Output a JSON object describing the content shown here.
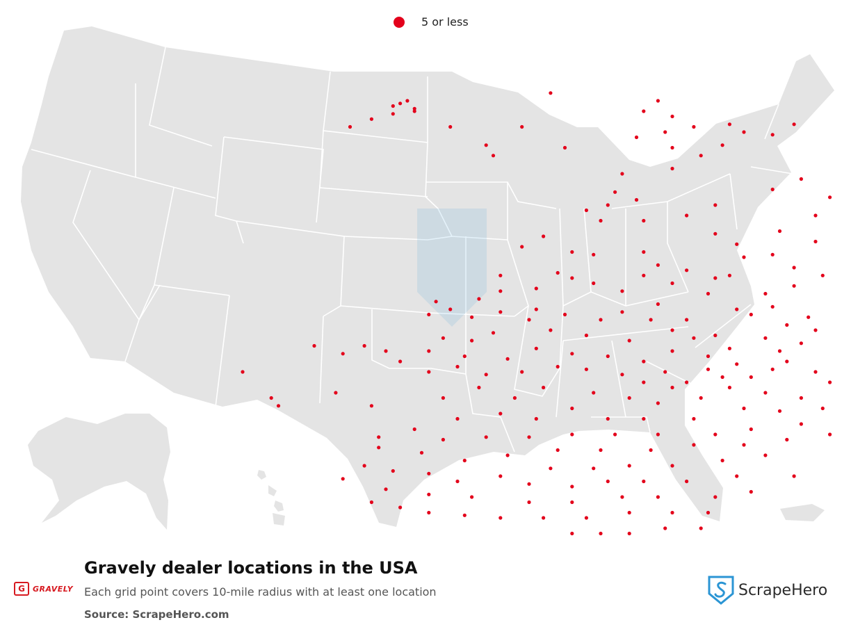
{
  "legend": {
    "label": "5 or less"
  },
  "title": "Gravely dealer locations in the USA",
  "subtitle": "Each grid point covers 10-mile radius with at least one location",
  "source": "Source: ScrapeHero.com",
  "logo_left": {
    "mark": "G",
    "name": "GRAVELY"
  },
  "logo_right": {
    "name": "ScrapeHero"
  },
  "colors": {
    "dot": "#e3001b",
    "land": "#e4e4e4",
    "border": "#ffffff",
    "brand_red": "#d71920",
    "scrapehero_blue": "#2b95d4"
  },
  "points": [
    [
      54,
      31
    ],
    [
      54,
      32
    ],
    [
      51,
      33
    ],
    [
      51,
      30
    ],
    [
      48,
      35
    ],
    [
      45,
      38
    ],
    [
      53,
      28
    ],
    [
      52,
      29
    ],
    [
      65,
      49
    ],
    [
      59,
      38
    ],
    [
      64,
      45
    ],
    [
      75,
      46
    ],
    [
      83,
      56
    ],
    [
      73,
      25
    ],
    [
      69,
      38
    ],
    [
      88,
      28
    ],
    [
      86,
      32
    ],
    [
      98,
      37
    ],
    [
      107,
      37
    ],
    [
      104,
      41
    ],
    [
      97,
      45
    ],
    [
      100,
      40
    ],
    [
      93,
      38
    ],
    [
      90,
      46
    ],
    [
      94,
      49
    ],
    [
      90,
      34
    ],
    [
      89,
      40
    ],
    [
      85,
      42
    ],
    [
      90,
      54
    ],
    [
      82,
      63
    ],
    [
      85,
      66
    ],
    [
      96,
      68
    ],
    [
      104,
      62
    ],
    [
      108,
      58
    ],
    [
      115,
      61
    ],
    [
      112,
      65
    ],
    [
      118,
      68
    ],
    [
      110,
      72
    ],
    [
      105,
      78
    ],
    [
      99,
      83
    ],
    [
      96,
      79
    ],
    [
      100,
      88
    ],
    [
      104,
      87
    ],
    [
      107,
      92
    ],
    [
      111,
      95
    ],
    [
      107,
      99
    ],
    [
      103,
      102
    ],
    [
      98,
      95
    ],
    [
      96,
      96
    ],
    [
      92,
      93
    ],
    [
      88,
      91
    ],
    [
      80,
      74
    ],
    [
      78,
      70
    ],
    [
      81,
      68
    ],
    [
      86,
      74
    ],
    [
      92,
      72
    ],
    [
      120,
      69
    ],
    [
      117,
      72
    ],
    [
      114,
      76
    ],
    [
      110,
      82
    ],
    [
      117,
      84
    ],
    [
      115,
      89
    ],
    [
      118,
      94
    ],
    [
      121,
      98
    ],
    [
      72,
      80
    ],
    [
      69,
      84
    ],
    [
      76,
      86
    ],
    [
      79,
      87
    ],
    [
      86,
      86
    ],
    [
      86,
      95
    ],
    [
      90,
      98
    ],
    [
      95,
      102
    ],
    [
      99,
      108
    ],
    [
      101,
      110
    ],
    [
      104,
      107
    ],
    [
      106,
      114
    ],
    [
      109,
      111
    ],
    [
      110,
      116
    ],
    [
      114,
      118
    ],
    [
      115,
      109
    ],
    [
      117,
      103
    ],
    [
      120,
      105
    ],
    [
      123,
      110
    ],
    [
      123,
      115
    ],
    [
      122,
      119
    ],
    [
      119,
      121
    ],
    [
      117,
      127
    ],
    [
      113,
      124
    ],
    [
      108,
      121
    ],
    [
      105,
      124
    ],
    [
      103,
      119
    ],
    [
      98,
      123
    ],
    [
      96,
      118
    ],
    [
      92,
      112
    ],
    [
      88,
      106
    ],
    [
      83,
      101
    ],
    [
      79,
      98
    ],
    [
      76,
      96
    ],
    [
      74,
      94
    ],
    [
      71,
      100
    ],
    [
      66,
      95
    ],
    [
      66,
      101
    ],
    [
      63,
      104
    ],
    [
      59,
      108
    ],
    [
      56,
      110
    ],
    [
      57,
      105
    ],
    [
      62,
      111
    ],
    [
      66,
      109
    ],
    [
      71,
      108
    ],
    [
      75,
      110
    ],
    [
      80,
      112
    ],
    [
      83,
      109
    ],
    [
      87,
      112
    ],
    [
      90,
      116
    ],
    [
      93,
      119
    ],
    [
      95,
      126
    ],
    [
      99,
      129
    ],
    [
      104,
      131
    ],
    [
      101,
      134
    ],
    [
      97,
      134
    ],
    [
      95,
      131
    ],
    [
      90,
      124
    ],
    [
      84,
      120
    ],
    [
      78,
      118
    ],
    [
      73,
      116
    ],
    [
      70,
      112
    ],
    [
      65,
      117
    ],
    [
      62,
      120
    ],
    [
      58,
      119
    ],
    [
      56,
      124
    ],
    [
      61,
      126
    ],
    [
      67,
      127
    ],
    [
      71,
      123
    ],
    [
      76,
      125
    ],
    [
      81,
      126
    ],
    [
      86,
      128
    ],
    [
      89,
      132
    ],
    [
      92,
      136
    ],
    [
      98,
      138
    ],
    [
      103,
      140
    ],
    [
      108,
      142
    ],
    [
      112,
      136
    ],
    [
      116,
      132
    ],
    [
      120,
      129
    ],
    [
      124,
      126
    ],
    [
      106,
      128
    ],
    [
      110,
      132
    ],
    [
      114,
      127
    ],
    [
      90,
      138
    ],
    [
      86,
      136
    ],
    [
      83,
      133
    ],
    [
      78,
      131
    ],
    [
      74,
      130
    ],
    [
      69,
      132
    ],
    [
      64,
      133
    ],
    [
      60,
      130
    ],
    [
      56,
      132
    ],
    [
      52,
      128
    ],
    [
      50,
      124
    ],
    [
      47,
      122
    ],
    [
      44,
      125
    ],
    [
      40,
      122
    ],
    [
      30,
      132
    ],
    [
      34,
      142
    ],
    [
      35,
      145
    ],
    [
      43,
      140
    ],
    [
      48,
      145
    ],
    [
      58,
      142
    ],
    [
      63,
      138
    ],
    [
      68,
      142
    ],
    [
      72,
      138
    ],
    [
      79,
      140
    ],
    [
      84,
      142
    ],
    [
      88,
      144
    ],
    [
      94,
      142
    ],
    [
      60,
      150
    ],
    [
      66,
      148
    ],
    [
      71,
      150
    ],
    [
      76,
      146
    ],
    [
      81,
      150
    ],
    [
      86,
      150
    ],
    [
      93,
      150
    ],
    [
      100,
      146
    ],
    [
      105,
      147
    ],
    [
      111,
      146
    ],
    [
      117,
      140
    ],
    [
      122,
      138
    ],
    [
      126,
      135
    ],
    [
      118,
      148
    ],
    [
      113,
      151
    ],
    [
      108,
      152
    ],
    [
      101,
      154
    ],
    [
      96,
      156
    ],
    [
      88,
      156
    ],
    [
      82,
      156
    ],
    [
      76,
      156
    ],
    [
      70,
      157
    ],
    [
      64,
      157
    ],
    [
      58,
      158
    ],
    [
      54,
      154
    ],
    [
      49,
      157
    ],
    [
      49,
      161
    ],
    [
      55,
      163
    ],
    [
      61,
      166
    ],
    [
      67,
      164
    ],
    [
      74,
      162
    ],
    [
      80,
      162
    ],
    [
      87,
      162
    ],
    [
      93,
      160
    ],
    [
      100,
      160
    ],
    [
      106,
      158
    ],
    [
      112,
      156
    ],
    [
      90,
      168
    ],
    [
      97,
      166
    ],
    [
      103,
      164
    ],
    [
      84,
      168
    ],
    [
      79,
      169
    ],
    [
      73,
      169
    ],
    [
      66,
      172
    ],
    [
      70,
      175
    ],
    [
      76,
      176
    ],
    [
      81,
      174
    ],
    [
      86,
      174
    ],
    [
      92,
      174
    ],
    [
      99,
      172
    ],
    [
      60,
      174
    ],
    [
      56,
      171
    ],
    [
      51,
      170
    ],
    [
      47,
      168
    ],
    [
      44,
      173
    ],
    [
      50,
      177
    ],
    [
      56,
      179
    ],
    [
      62,
      180
    ],
    [
      70,
      182
    ],
    [
      76,
      182
    ],
    [
      83,
      180
    ],
    [
      88,
      180
    ],
    [
      96,
      180
    ],
    [
      101,
      178
    ],
    [
      107,
      172
    ],
    [
      95,
      186
    ],
    [
      90,
      186
    ],
    [
      84,
      186
    ],
    [
      78,
      188
    ],
    [
      72,
      188
    ],
    [
      66,
      188
    ],
    [
      61,
      187
    ],
    [
      56,
      186
    ],
    [
      52,
      184
    ],
    [
      48,
      182
    ],
    [
      80,
      194
    ],
    [
      76,
      194
    ],
    [
      84,
      194
    ],
    [
      89,
      192
    ],
    [
      94,
      192
    ]
  ]
}
